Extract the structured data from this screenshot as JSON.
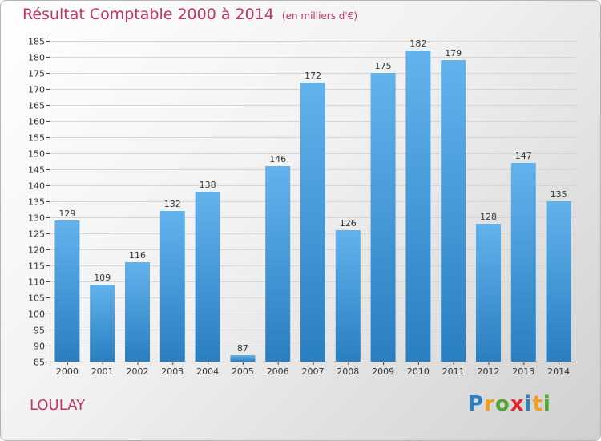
{
  "header": {
    "title": "Résultat Comptable 2000 à 2014",
    "unit": "(en milliers d'€)"
  },
  "footer": {
    "commune": "LOULAY"
  },
  "logo": {
    "letters": [
      "P",
      "r",
      "o",
      "x",
      "i",
      "t",
      "i"
    ],
    "colors": [
      "#2e7fc3",
      "#f39c1d",
      "#55a630",
      "#e3262b",
      "#2e7fc3",
      "#f39c1d",
      "#55a630"
    ]
  },
  "colors": {
    "bar_top": "#62b2ec",
    "bar_bottom": "#2a7fc1",
    "text": "#c4345f",
    "axis": "#444444"
  },
  "chart_data": {
    "type": "bar",
    "title": "Résultat Comptable 2000 à 2014",
    "unit": "(en milliers d'€)",
    "categories": [
      "2000",
      "2001",
      "2002",
      "2003",
      "2004",
      "2005",
      "2006",
      "2007",
      "2008",
      "2009",
      "2010",
      "2011",
      "2012",
      "2013",
      "2014"
    ],
    "values": [
      129,
      109,
      116,
      132,
      138,
      87,
      146,
      172,
      126,
      175,
      182,
      179,
      128,
      147,
      135
    ],
    "ylim": [
      85,
      185
    ],
    "ytick_step": 5,
    "grid": true
  }
}
